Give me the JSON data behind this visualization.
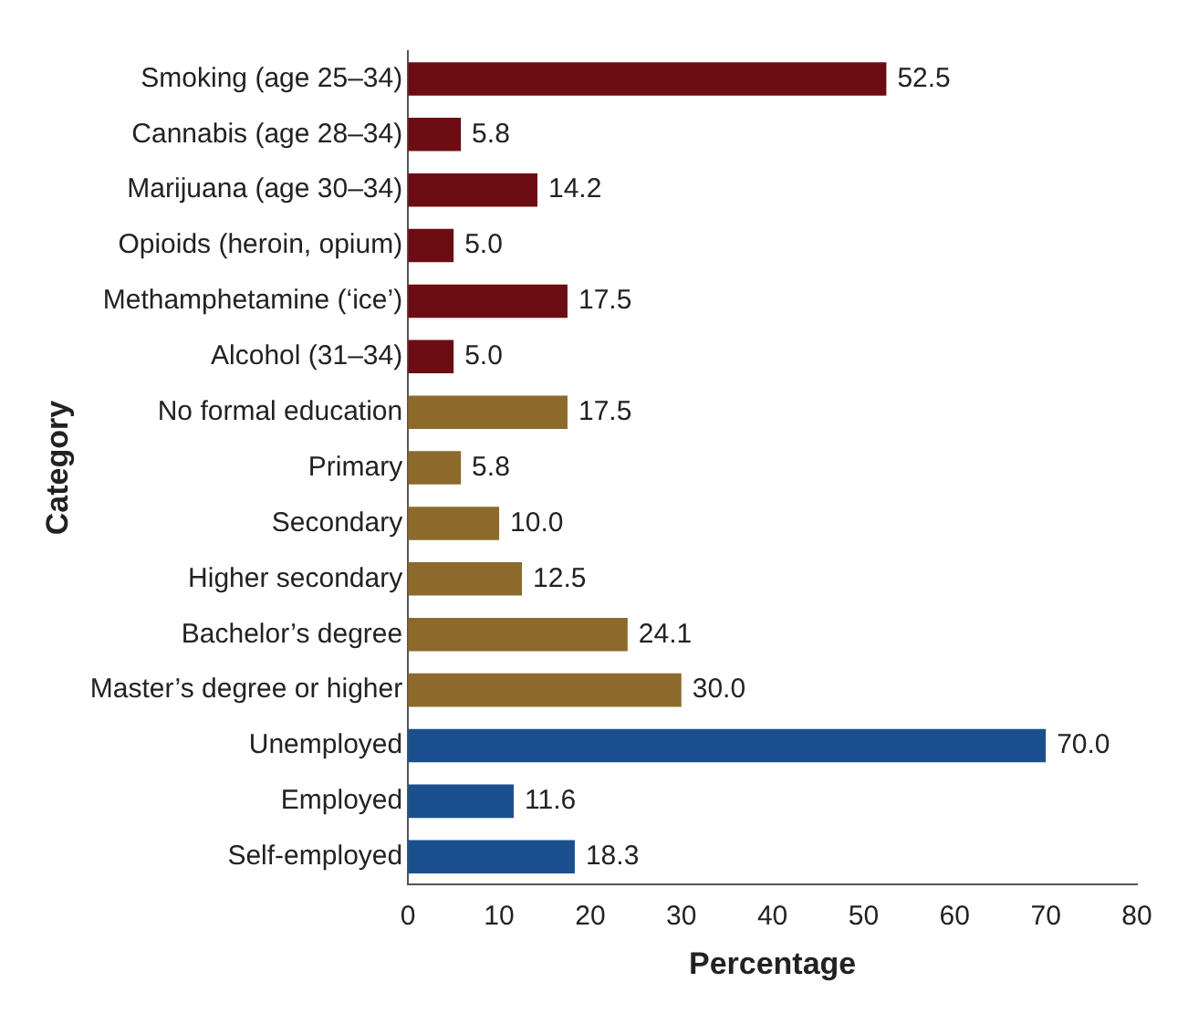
{
  "chart_data": {
    "type": "bar",
    "orientation": "horizontal",
    "xlabel": "Percentage",
    "ylabel": "Category",
    "categories": [
      "Smoking (age 25–34)",
      "Cannabis (age 28–34)",
      "Marijuana (age 30–34)",
      "Opioids (heroin, opium)",
      "Methamphetamine (‘ice’)",
      "Alcohol (31–34)",
      "No formal education",
      "Primary",
      "Secondary",
      "Higher secondary",
      "Bachelor’s degree",
      "Master’s degree or higher",
      "Unemployed",
      "Employed",
      "Self-employed"
    ],
    "values": [
      52.5,
      5.8,
      14.2,
      5.0,
      17.5,
      5.0,
      17.5,
      5.8,
      10.0,
      12.5,
      24.1,
      30.0,
      70.0,
      11.6,
      18.3
    ],
    "colors": [
      "#6b0d12",
      "#6b0d12",
      "#6b0d12",
      "#6b0d12",
      "#6b0d12",
      "#6b0d12",
      "#8b6a2c",
      "#8b6a2c",
      "#8b6a2c",
      "#8b6a2c",
      "#8b6a2c",
      "#8b6a2c",
      "#1c4f8d",
      "#1c4f8d",
      "#1c4f8d"
    ],
    "value_labels": [
      "52.5",
      "5.8",
      "14.2",
      "5.0",
      "17.5",
      "5.0",
      "17.5",
      "5.8",
      "10.0",
      "12.5",
      "24.1",
      "30.0",
      "70.0",
      "11.6",
      "18.3"
    ],
    "xlim": [
      0,
      80
    ],
    "xticks": [
      0,
      10,
      20,
      30,
      40,
      50,
      60,
      70,
      80
    ],
    "grid": false,
    "legend": false
  }
}
